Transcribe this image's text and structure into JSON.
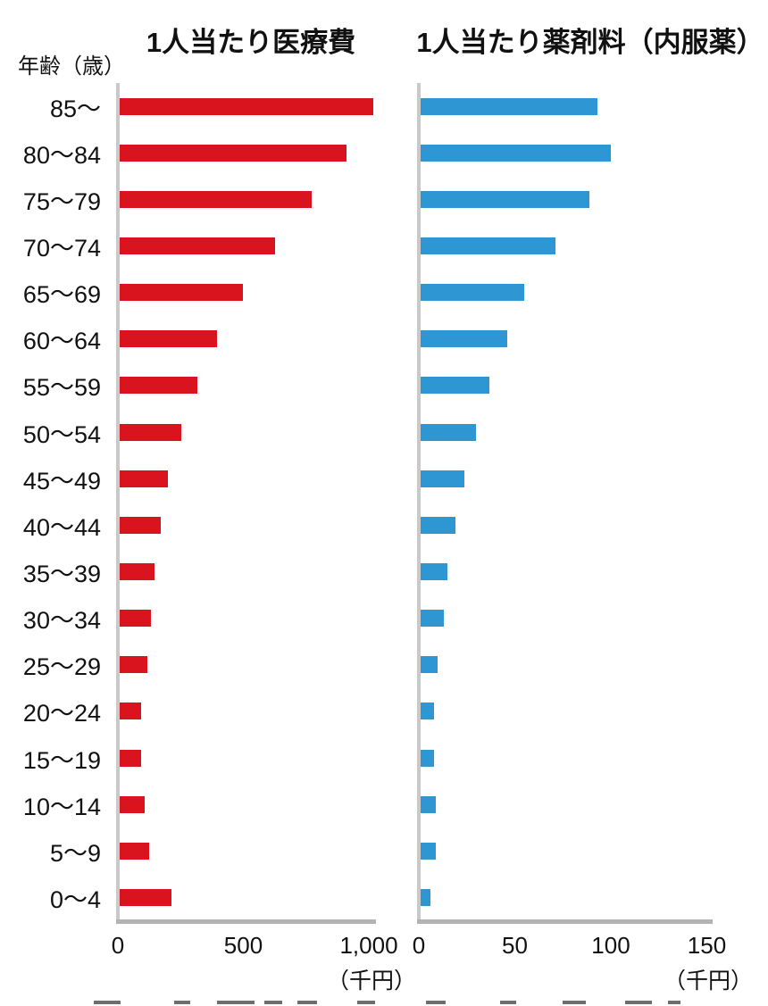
{
  "y_axis_label": "年齢（歳）",
  "colors": {
    "medical_bar": "#d9141f",
    "drug_bar": "#2e96d2",
    "axis_vertical_line": "#c9c9c9",
    "axis_horizontal_line": "#b3b3b3",
    "text": "#111111"
  },
  "chart_data": [
    {
      "type": "bar",
      "orientation": "horizontal",
      "title": "1人当たり医療費",
      "unit_label": "（千円）",
      "unit": "千円",
      "color": "#d9141f",
      "categories": [
        "85〜",
        "80〜84",
        "75〜79",
        "70〜74",
        "65〜69",
        "60〜64",
        "55〜59",
        "50〜54",
        "45〜49",
        "40〜44",
        "35〜39",
        "30〜34",
        "25〜29",
        "20〜24",
        "15〜19",
        "10〜14",
        "5〜9",
        "0〜4"
      ],
      "values": [
        1010,
        905,
        765,
        620,
        490,
        388,
        310,
        246,
        193,
        162,
        140,
        126,
        109,
        84,
        87,
        100,
        118,
        205
      ],
      "xticks": [
        0,
        500,
        1000
      ],
      "xtick_labels": [
        "0",
        "500",
        "1,000"
      ],
      "xlim": [
        0,
        1035
      ],
      "grid": false,
      "legend": "none"
    },
    {
      "type": "bar",
      "orientation": "horizontal",
      "title": "1人当たり薬剤料（内服薬）",
      "unit_label": "（千円）",
      "unit": "千円",
      "color": "#2e96d2",
      "categories": [
        "85〜",
        "80〜84",
        "75〜79",
        "70〜74",
        "65〜69",
        "60〜64",
        "55〜59",
        "50〜54",
        "45〜49",
        "40〜44",
        "35〜39",
        "30〜34",
        "25〜29",
        "20〜24",
        "15〜19",
        "10〜14",
        "5〜9",
        "0〜4"
      ],
      "values": [
        92,
        99,
        88,
        70,
        54,
        45,
        36,
        29,
        23,
        18,
        14,
        12,
        9,
        7,
        7,
        8,
        8,
        5
      ],
      "xticks": [
        0,
        50,
        100,
        150
      ],
      "xtick_labels": [
        "0",
        "50",
        "100",
        "150"
      ],
      "xlim": [
        0,
        154
      ],
      "grid": false,
      "legend": "none"
    }
  ]
}
